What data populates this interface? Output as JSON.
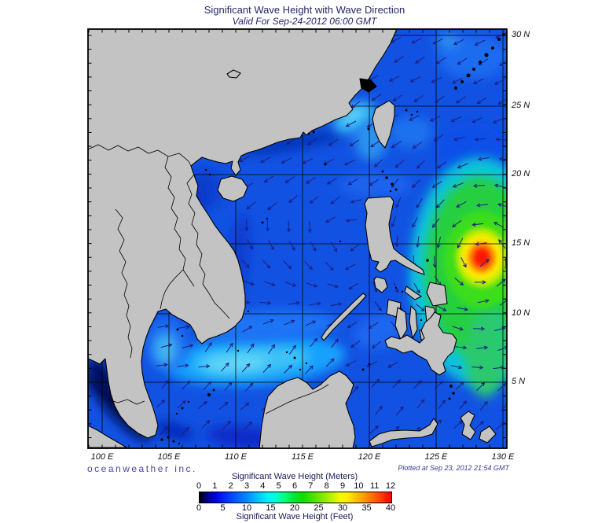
{
  "header": {
    "title": "Significant Wave Height with Wave Direction",
    "subtitle": "Valid For Sep-24-2012 06:00 GMT"
  },
  "branding": {
    "credit": "oceanweather inc."
  },
  "footer": {
    "plotted": "Plotted at Sep 23, 2012 21:54 GMT"
  },
  "axes": {
    "x_labels": [
      "100 E",
      "105 E",
      "110 E",
      "115 E",
      "120 E",
      "125 E",
      "130 E"
    ],
    "y_labels": [
      "30 N",
      "25 N",
      "20 N",
      "15 N",
      "10 N",
      "5 N"
    ]
  },
  "legend": {
    "title_meters": "Significant Wave Height (Meters)",
    "title_feet": "Significant Wave Height (Feet)",
    "meters_ticks": [
      "0",
      "1",
      "2",
      "3",
      "4",
      "5",
      "6",
      "7",
      "8",
      "9",
      "10",
      "11",
      "12"
    ],
    "feet_ticks": [
      "0",
      "5",
      "10",
      "15",
      "20",
      "25",
      "30",
      "35",
      "40"
    ],
    "colorbar_stops": [
      [
        "#000000",
        0
      ],
      [
        "#000070",
        3
      ],
      [
        "#0000d8",
        8
      ],
      [
        "#0030ff",
        14
      ],
      [
        "#0064ff",
        20
      ],
      [
        "#0096ff",
        26
      ],
      [
        "#00c8ff",
        31
      ],
      [
        "#00eeff",
        35
      ],
      [
        "#00ffd4",
        40
      ],
      [
        "#00ff80",
        44
      ],
      [
        "#00e838",
        49
      ],
      [
        "#12dc00",
        54
      ],
      [
        "#52e400",
        60
      ],
      [
        "#8cec00",
        65
      ],
      [
        "#c8f400",
        70
      ],
      [
        "#f4f800",
        73
      ],
      [
        "#ffee00",
        77
      ],
      [
        "#ffc800",
        81
      ],
      [
        "#ffa000",
        85
      ],
      [
        "#ff7800",
        89
      ],
      [
        "#ff4600",
        94
      ],
      [
        "#ff1400",
        98
      ],
      [
        "#ff0000",
        100
      ]
    ]
  },
  "chart_data": {
    "type": "heatmap",
    "projection": "lat-lon geographic map",
    "x_range_deg_east": [
      99,
      130.5
    ],
    "y_range_deg_north": [
      0,
      30.5
    ],
    "grid_spacing_deg": 5,
    "units": [
      "meters",
      "feet"
    ],
    "scale_range_m": [
      0,
      12
    ],
    "scale_range_ft": [
      0,
      40
    ],
    "arrow_meaning": "wave direction (dark navy arrows over ocean)",
    "features": [
      {
        "name": "typhoon-peak",
        "lon_e": 127.8,
        "lat_n": 14.2,
        "max_wave_height_m": 12,
        "description": "red core with orange/yellow/green concentric rings, cyclonic counterclockwise arrows"
      },
      {
        "name": "pacific-east-of-philippines",
        "wave_height_m": "4-8 (green field)"
      },
      {
        "name": "south-china-sea",
        "wave_height_m": "1-3 (blue, cyan band near 5-8N)"
      },
      {
        "name": "gulf-of-thailand",
        "wave_height_m": "1-2.5"
      },
      {
        "name": "malacca-strait",
        "wave_height_m": "0-0.5 (near-black calm)"
      }
    ]
  },
  "colors": {
    "land": "#c3c3c3",
    "coastline": "#000000",
    "ocean_base": "#1252e2",
    "frame": "#000000",
    "arrow": "#1d1d80",
    "title_text": "#26266a",
    "axis_text": "#111111"
  }
}
